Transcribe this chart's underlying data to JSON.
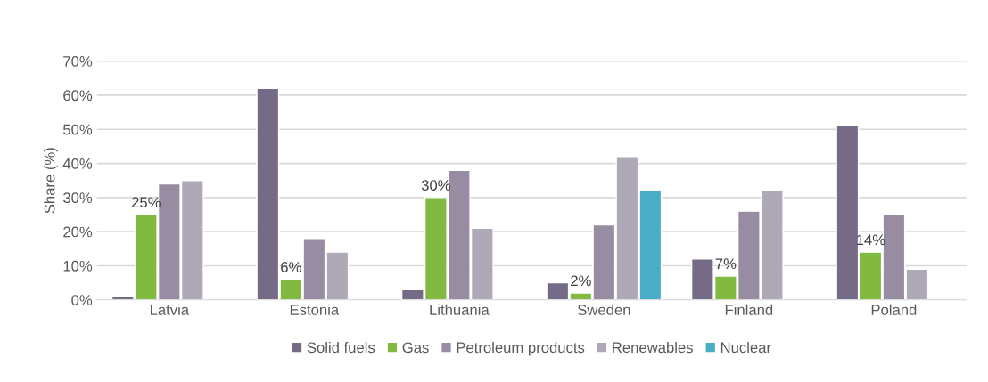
{
  "chart_data": {
    "type": "bar",
    "ylabel": "Share (%)",
    "categories": [
      "Latvia",
      "Estonia",
      "Lithuania",
      "Sweden",
      "Finland",
      "Poland"
    ],
    "series": [
      {
        "name": "Solid fuels",
        "color": "#756b87",
        "values": [
          1,
          62,
          3,
          5,
          12,
          51
        ]
      },
      {
        "name": "Gas",
        "color": "#82b941",
        "values": [
          25,
          6,
          30,
          2,
          7,
          14
        ],
        "value_labels": [
          "25%",
          "6%",
          "30%",
          "2%",
          "7%",
          "14%"
        ]
      },
      {
        "name": "Petroleum products",
        "color": "#978ca2",
        "values": [
          34,
          18,
          38,
          22,
          26,
          25
        ]
      },
      {
        "name": "Renewables",
        "color": "#aea8b7",
        "values": [
          35,
          14,
          21,
          42,
          32,
          9
        ]
      },
      {
        "name": "Nuclear",
        "color": "#4bacc6",
        "values": [
          null,
          null,
          null,
          32,
          null,
          null
        ]
      }
    ],
    "ylim": [
      0,
      70
    ],
    "yticks": [
      {
        "value": 0,
        "label": "0%"
      },
      {
        "value": 10,
        "label": "10%"
      },
      {
        "value": 20,
        "label": "20%"
      },
      {
        "value": 30,
        "label": "30%"
      },
      {
        "value": 40,
        "label": "40%"
      },
      {
        "value": 50,
        "label": "50%"
      },
      {
        "value": 60,
        "label": "60%"
      },
      {
        "value": 70,
        "label": "70%"
      }
    ],
    "grid": "y",
    "legend": "bottom"
  }
}
